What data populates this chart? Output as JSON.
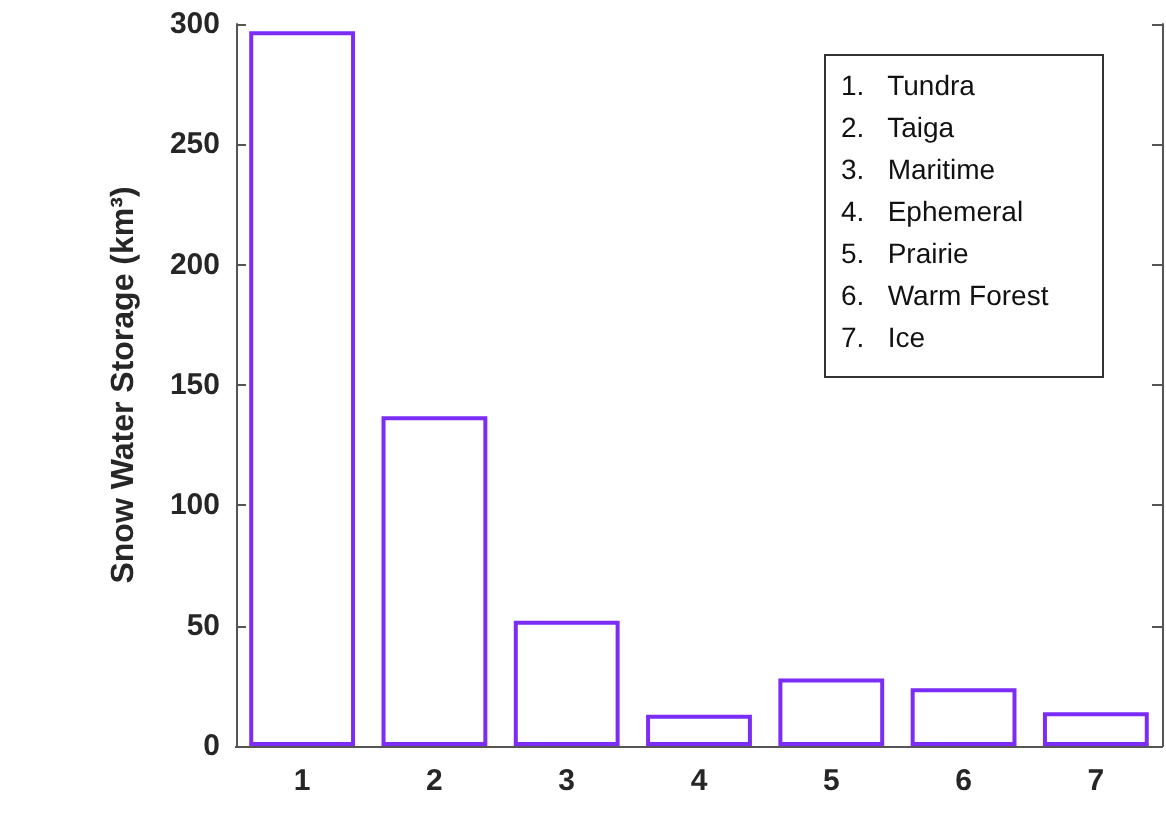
{
  "chart_data": {
    "type": "bar",
    "ylabel": "Snow Water Storage (km³)",
    "categories": [
      "1",
      "2",
      "3",
      "4",
      "5",
      "6",
      "7"
    ],
    "values": [
      297,
      137,
      52,
      13,
      28,
      24,
      14
    ],
    "color": "#7b2cf5",
    "ylim": [
      0,
      300
    ],
    "yticks": [
      0,
      50,
      100,
      150,
      200,
      250,
      300
    ],
    "grid": false,
    "annotations": [
      "1.   Tundra",
      "2.   Taiga",
      "3.   Maritime",
      "4.   Ephemeral",
      "5.   Prairie",
      "6.   Warm Forest",
      "7.   Ice"
    ]
  }
}
